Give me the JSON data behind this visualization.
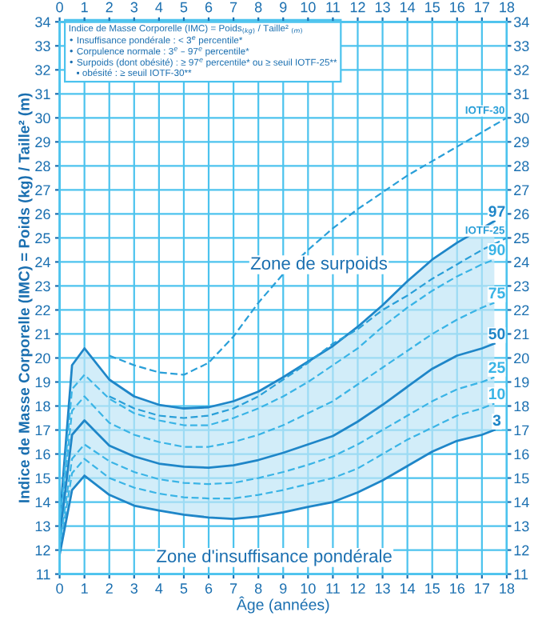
{
  "chart_data": {
    "type": "line",
    "xlabel": "Âge (années)",
    "ylabel": "Indice de Masse Corporelle (IMC) = Poids (kg) / Taille² (m)",
    "x": [
      0,
      0.5,
      1,
      2,
      3,
      4,
      5,
      6,
      7,
      8,
      9,
      10,
      11,
      12,
      13,
      14,
      15,
      16,
      17,
      17.5
    ],
    "series": [
      {
        "name": "97",
        "color": "#1f86c8",
        "line_style": "solid",
        "values": [
          13.2,
          19.7,
          20.4,
          19.1,
          18.4,
          18.05,
          17.9,
          17.95,
          18.2,
          18.6,
          19.2,
          19.85,
          20.5,
          21.3,
          22.2,
          23.2,
          24.1,
          24.8,
          25.4,
          25.7
        ]
      },
      {
        "name": "90",
        "color": "#3ab4e6",
        "line_style": "dashed",
        "values": [
          13.0,
          18.7,
          19.3,
          18.3,
          17.7,
          17.4,
          17.2,
          17.2,
          17.5,
          17.9,
          18.4,
          19.0,
          19.7,
          20.4,
          21.3,
          22.1,
          22.8,
          23.4,
          23.9,
          24.1
        ]
      },
      {
        "name": "75",
        "color": "#3ab4e6",
        "line_style": "dashed",
        "values": [
          12.8,
          17.8,
          18.4,
          17.3,
          16.8,
          16.5,
          16.3,
          16.3,
          16.5,
          16.8,
          17.2,
          17.7,
          18.2,
          18.9,
          19.6,
          20.3,
          21.0,
          21.6,
          22.1,
          22.3
        ]
      },
      {
        "name": "50",
        "color": "#1f86c8",
        "line_style": "solid",
        "values": [
          12.5,
          16.8,
          17.4,
          16.35,
          15.9,
          15.6,
          15.47,
          15.43,
          15.53,
          15.75,
          16.05,
          16.4,
          16.75,
          17.35,
          18.05,
          18.8,
          19.55,
          20.1,
          20.4,
          20.6
        ],
        "lower": [
          11.8,
          14.5,
          15.1,
          14.3,
          13.85,
          13.65,
          13.47,
          13.36,
          13.3,
          13.4,
          13.57,
          13.8,
          14.0,
          14.4,
          14.9,
          15.5,
          16.1,
          16.55,
          16.8,
          17.0
        ],
        "upper": [
          13.2,
          19.7,
          20.4,
          19.1,
          18.4,
          18.05,
          17.9,
          17.95,
          18.2,
          18.6,
          19.2,
          19.85,
          20.5,
          21.3,
          22.2,
          23.2,
          24.1,
          24.8,
          25.4,
          25.7
        ]
      },
      {
        "name": "25",
        "color": "#3ab4e6",
        "line_style": "dashed",
        "values": [
          12.2,
          15.8,
          16.4,
          15.7,
          15.25,
          14.95,
          14.8,
          14.75,
          14.8,
          15.0,
          15.25,
          15.55,
          15.9,
          16.4,
          17.0,
          17.6,
          18.2,
          18.7,
          19.0,
          19.2
        ]
      },
      {
        "name": "10",
        "color": "#3ab4e6",
        "line_style": "dashed",
        "values": [
          12.0,
          15.2,
          15.8,
          15.0,
          14.6,
          14.35,
          14.2,
          14.15,
          14.15,
          14.3,
          14.5,
          14.75,
          15.0,
          15.4,
          16.0,
          16.6,
          17.1,
          17.6,
          17.9,
          18.1
        ]
      },
      {
        "name": "3",
        "color": "#1f86c8",
        "line_style": "solid",
        "values": [
          11.8,
          14.5,
          15.1,
          14.3,
          13.85,
          13.65,
          13.47,
          13.36,
          13.3,
          13.4,
          13.57,
          13.8,
          14.0,
          14.4,
          14.9,
          15.5,
          16.1,
          16.55,
          16.8,
          17.0
        ]
      },
      {
        "name": "IOTF-25",
        "color": "#2a9fd8",
        "line_style": "dashed",
        "x": [
          2,
          3,
          4,
          5,
          6,
          7,
          8,
          9,
          10,
          11,
          12,
          13,
          14,
          15,
          16,
          17,
          18
        ],
        "values": [
          18.4,
          17.9,
          17.6,
          17.5,
          17.6,
          17.9,
          18.4,
          19.1,
          19.8,
          20.6,
          21.2,
          22.0,
          22.6,
          23.3,
          23.9,
          24.5,
          25.0
        ]
      },
      {
        "name": "IOTF-30",
        "color": "#2a9fd8",
        "line_style": "dashed",
        "x": [
          2,
          3,
          4,
          5,
          6,
          7,
          8,
          9,
          10,
          11,
          12,
          13,
          14,
          15,
          16,
          17,
          18
        ],
        "values": [
          20.1,
          19.7,
          19.4,
          19.3,
          19.8,
          20.9,
          22.3,
          23.5,
          24.5,
          25.4,
          26.2,
          26.9,
          27.6,
          28.2,
          28.8,
          29.4,
          30.0
        ]
      }
    ],
    "xlim": [
      0,
      18
    ],
    "xticks": [
      0,
      1,
      2,
      3,
      4,
      5,
      6,
      7,
      8,
      9,
      10,
      11,
      12,
      13,
      14,
      15,
      16,
      17,
      18
    ],
    "x2lim": [
      0,
      18
    ],
    "x2ticks": [
      0,
      1,
      2,
      3,
      4,
      5,
      6,
      7,
      8,
      9,
      10,
      11,
      12,
      13,
      14,
      15,
      16,
      17,
      18
    ],
    "ylim": [
      11,
      34
    ],
    "yticks": [
      11,
      12,
      13,
      14,
      15,
      16,
      17,
      18,
      19,
      20,
      21,
      22,
      23,
      24,
      25,
      26,
      27,
      28,
      29,
      30,
      31,
      32,
      33,
      34
    ],
    "y2lim": [
      11,
      34
    ],
    "y2ticks": [
      11,
      12,
      13,
      14,
      15,
      16,
      17,
      18,
      19,
      20,
      21,
      22,
      23,
      24,
      25,
      26,
      27,
      28,
      29,
      30,
      31,
      32,
      33,
      34
    ],
    "grid": true,
    "legend": false,
    "annotations": [
      "Zone de surpoids",
      "Zone d'insuffisance pondérale",
      "Indice de Masse Corporelle (IMC) = Poids$_{(kg)}$ / Taille² $_{(m)}$\n• Insuffisance pondérale : < 3$^{e}$ percentile*\n• Corpulence normale : 3$^{e}$ – 97$^{e}$ percentile*\n• Surpoids (dont obésité) : ≥ 97$^{e}$ percentile* ou ≥ seuil IOTF-25**\n   ▪ obésité : ≥ seuil IOTF-30**"
    ]
  }
}
